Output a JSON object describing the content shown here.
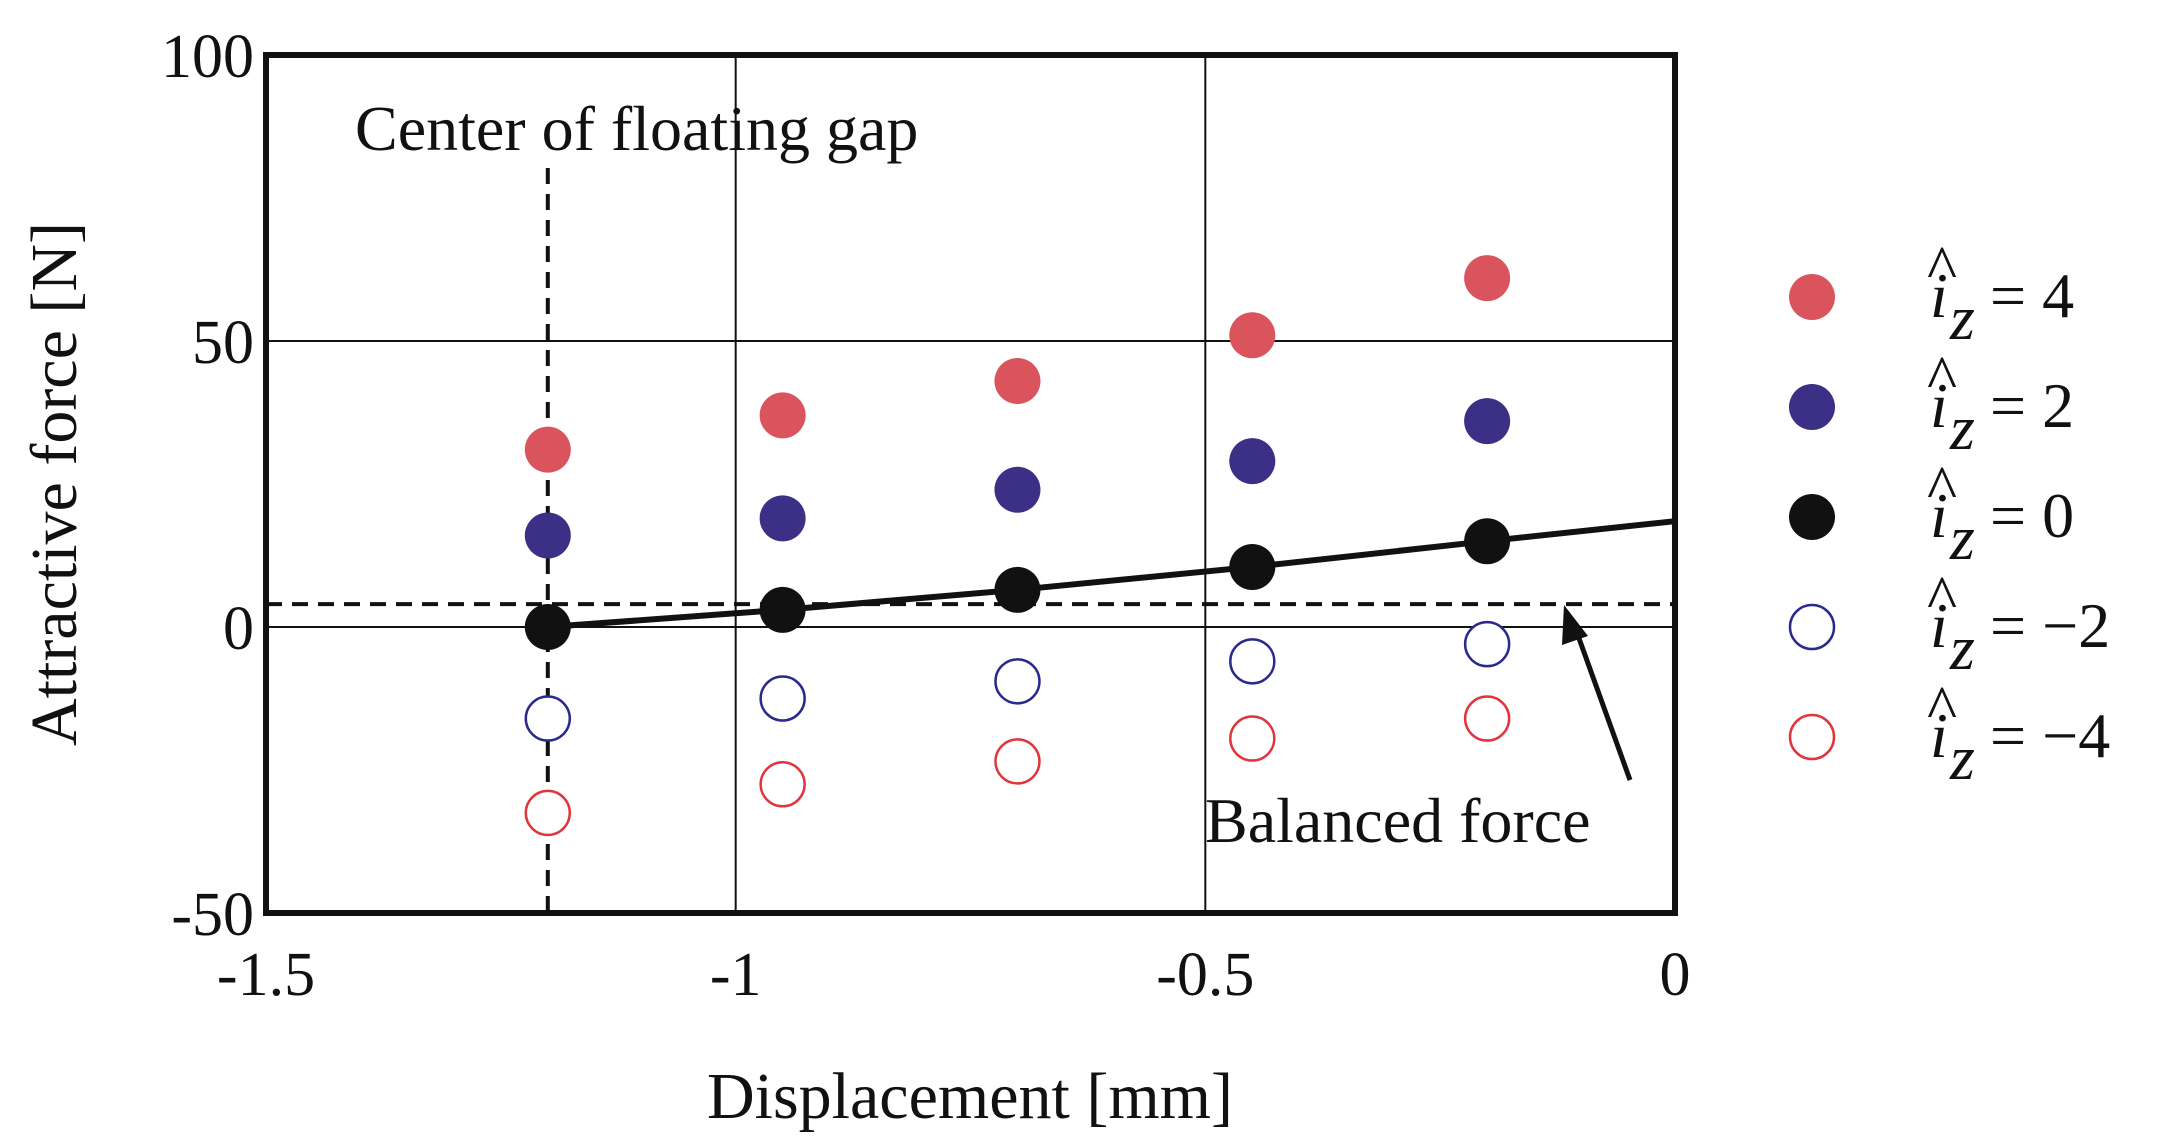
{
  "chart_data": {
    "type": "scatter",
    "title": "",
    "xlabel": "Displacement [mm]",
    "ylabel": "Attractive force [N]",
    "xlim": [
      -1.5,
      0
    ],
    "ylim": [
      -50,
      100
    ],
    "xticks": [
      -1.5,
      -1,
      -0.5,
      0
    ],
    "xtick_labels": [
      "-1.5",
      "-1",
      "-0.5",
      "0"
    ],
    "yticks": [
      -50,
      0,
      50,
      100
    ],
    "ytick_labels": [
      "-50",
      "0",
      "50",
      "100"
    ],
    "grid": true,
    "legend_position": "right",
    "series": [
      {
        "name": "î_z = 4",
        "legend_value": "4",
        "marker": "filled",
        "color": "#d9545c",
        "x": [
          -1.2,
          -0.95,
          -0.7,
          -0.45,
          -0.2
        ],
        "y": [
          31,
          37,
          43,
          51,
          61
        ]
      },
      {
        "name": "î_z = 2",
        "legend_value": "2",
        "marker": "filled",
        "color": "#3b2f86",
        "x": [
          -1.2,
          -0.95,
          -0.7,
          -0.45,
          -0.2
        ],
        "y": [
          16,
          19,
          24,
          29,
          36
        ]
      },
      {
        "name": "î_z = 0",
        "legend_value": "0",
        "marker": "filled",
        "color": "#111111",
        "x": [
          -1.2,
          -0.95,
          -0.7,
          -0.45,
          -0.2
        ],
        "y": [
          0,
          3,
          6.5,
          10.5,
          15
        ]
      },
      {
        "name": "î_z = −2",
        "legend_value": "−2",
        "marker": "open",
        "color": "#2a2a8c",
        "x": [
          -1.2,
          -0.95,
          -0.7,
          -0.45,
          -0.2
        ],
        "y": [
          -16,
          -12.5,
          -9.5,
          -6,
          -3
        ]
      },
      {
        "name": "î_z = −4",
        "legend_value": "−4",
        "marker": "open",
        "color": "#e0353c",
        "x": [
          -1.2,
          -0.95,
          -0.7,
          -0.45,
          -0.2
        ],
        "y": [
          -32.5,
          -27.5,
          -23.5,
          -19.5,
          -16
        ]
      }
    ],
    "fit_line": {
      "x": [
        -1.2,
        -0.95,
        -0.7,
        -0.45,
        -0.2,
        0
      ],
      "y": [
        0,
        3,
        6.5,
        10.5,
        15,
        18.5
      ]
    },
    "balanced_force": {
      "y": 4,
      "label": "Balanced force"
    },
    "floating_gap_center": {
      "x": -1.2,
      "label": "Center of floating gap"
    }
  }
}
